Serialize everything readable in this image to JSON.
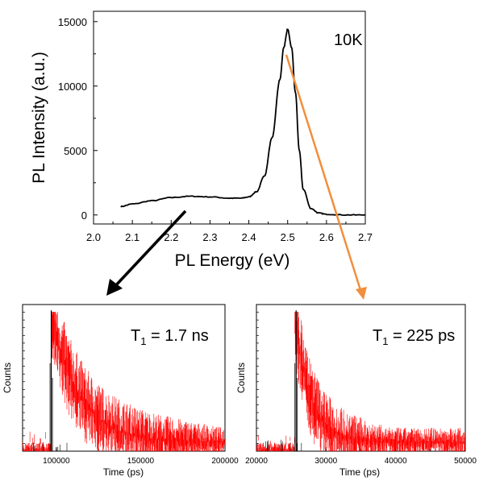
{
  "figure": {
    "connector_colors": {
      "black_arrow": "#000000",
      "orange_arrow": "#F28E3C"
    }
  },
  "chart_data": [
    {
      "type": "line",
      "annotation": "10K",
      "xlabel": "PL Energy (eV)",
      "ylabel": "PL Intensity (a.u.)",
      "xlim": [
        2.0,
        2.7
      ],
      "ylim": [
        -700,
        15800
      ],
      "x_ticks": [
        "2.0",
        "2.1",
        "2.2",
        "2.3",
        "2.4",
        "2.5",
        "2.6",
        "2.7"
      ],
      "y_ticks": [
        "0",
        "5000",
        "10000",
        "15000"
      ],
      "grid": false,
      "series": [
        {
          "color": "#000000",
          "x": [
            2.07,
            2.1,
            2.15,
            2.2,
            2.25,
            2.3,
            2.35,
            2.38,
            2.4,
            2.42,
            2.44,
            2.46,
            2.48,
            2.49,
            2.5,
            2.51,
            2.52,
            2.53,
            2.54,
            2.56,
            2.58,
            2.6,
            2.65,
            2.7
          ],
          "y": [
            650,
            850,
            1100,
            1350,
            1450,
            1400,
            1300,
            1300,
            1400,
            1800,
            3000,
            6000,
            10500,
            13000,
            14400,
            13000,
            9500,
            5000,
            2000,
            500,
            150,
            50,
            0,
            0
          ]
        }
      ]
    },
    {
      "type": "line",
      "annotation_main": "T",
      "annotation_sub": "1",
      "annotation_rest": " = 1.7 ns",
      "xlabel": "Time (ps)",
      "ylabel": "Counts",
      "xlim": [
        80000,
        200000
      ],
      "ylim": [
        0,
        1
      ],
      "x_ticks": [
        "100000",
        "150000",
        "200000"
      ],
      "grid": false,
      "series": [
        {
          "color": "#FF0000",
          "kind": "decay",
          "onset": 97000,
          "tau": 1700,
          "scale": 10
        },
        {
          "color": "#000000",
          "kind": "irf",
          "center": 97000
        }
      ]
    },
    {
      "type": "line",
      "annotation_main": "T",
      "annotation_sub": "1",
      "annotation_rest": " = 225 ps",
      "xlabel": "Time (ps)",
      "ylabel": "Counts",
      "xlim": [
        20000,
        50000
      ],
      "ylim": [
        0,
        1
      ],
      "x_ticks": [
        "20000",
        "30000",
        "40000",
        "50000"
      ],
      "grid": false,
      "series": [
        {
          "color": "#FF0000",
          "kind": "decay",
          "onset": 25500,
          "tau": 225,
          "scale": 10
        },
        {
          "color": "#000000",
          "kind": "irf",
          "center": 25700
        }
      ]
    }
  ]
}
